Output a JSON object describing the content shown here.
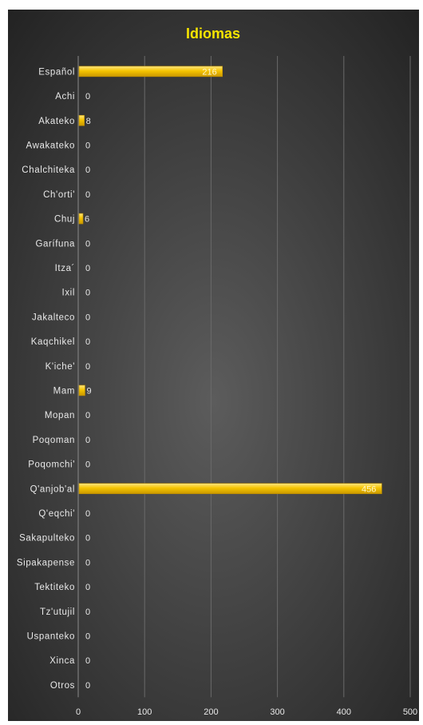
{
  "chart_data": {
    "type": "bar",
    "orientation": "horizontal",
    "title": "Idiomas",
    "categories": [
      "Español",
      "Achi",
      "Akateko",
      "Awakateko",
      "Chalchiteka",
      "Ch'orti'",
      "Chuj",
      "Garífuna",
      "Itza´",
      "Ixil",
      "Jakalteco",
      "Kaqchikel",
      "K'iche'",
      "Mam",
      "Mopan",
      "Poqoman",
      "Poqomchi'",
      "Q'anjob'al",
      "Q'eqchi'",
      "Sakapulteko",
      "Sipakapense",
      "Tektiteko",
      "Tz'utujil",
      "Uspanteko",
      "Xinca",
      "Otros"
    ],
    "values": [
      216,
      0,
      8,
      0,
      0,
      0,
      6,
      0,
      0,
      0,
      0,
      0,
      0,
      9,
      0,
      0,
      0,
      456,
      0,
      0,
      0,
      0,
      0,
      0,
      0,
      0
    ],
    "x_ticks": [
      0,
      100,
      200,
      300,
      400,
      500
    ],
    "xlim": [
      0,
      500
    ],
    "grid": "vertical",
    "legend": "none"
  },
  "colors": {
    "background_top": "#1f1f1f",
    "background_bottom": "#5a5a5a",
    "bar": "#f5c400",
    "bar_highlight": "#ffe066",
    "bar_shadow": "#b88a00",
    "title": "#f5e400",
    "text": "#e8e8e8",
    "grid": "#6a6a6a"
  }
}
